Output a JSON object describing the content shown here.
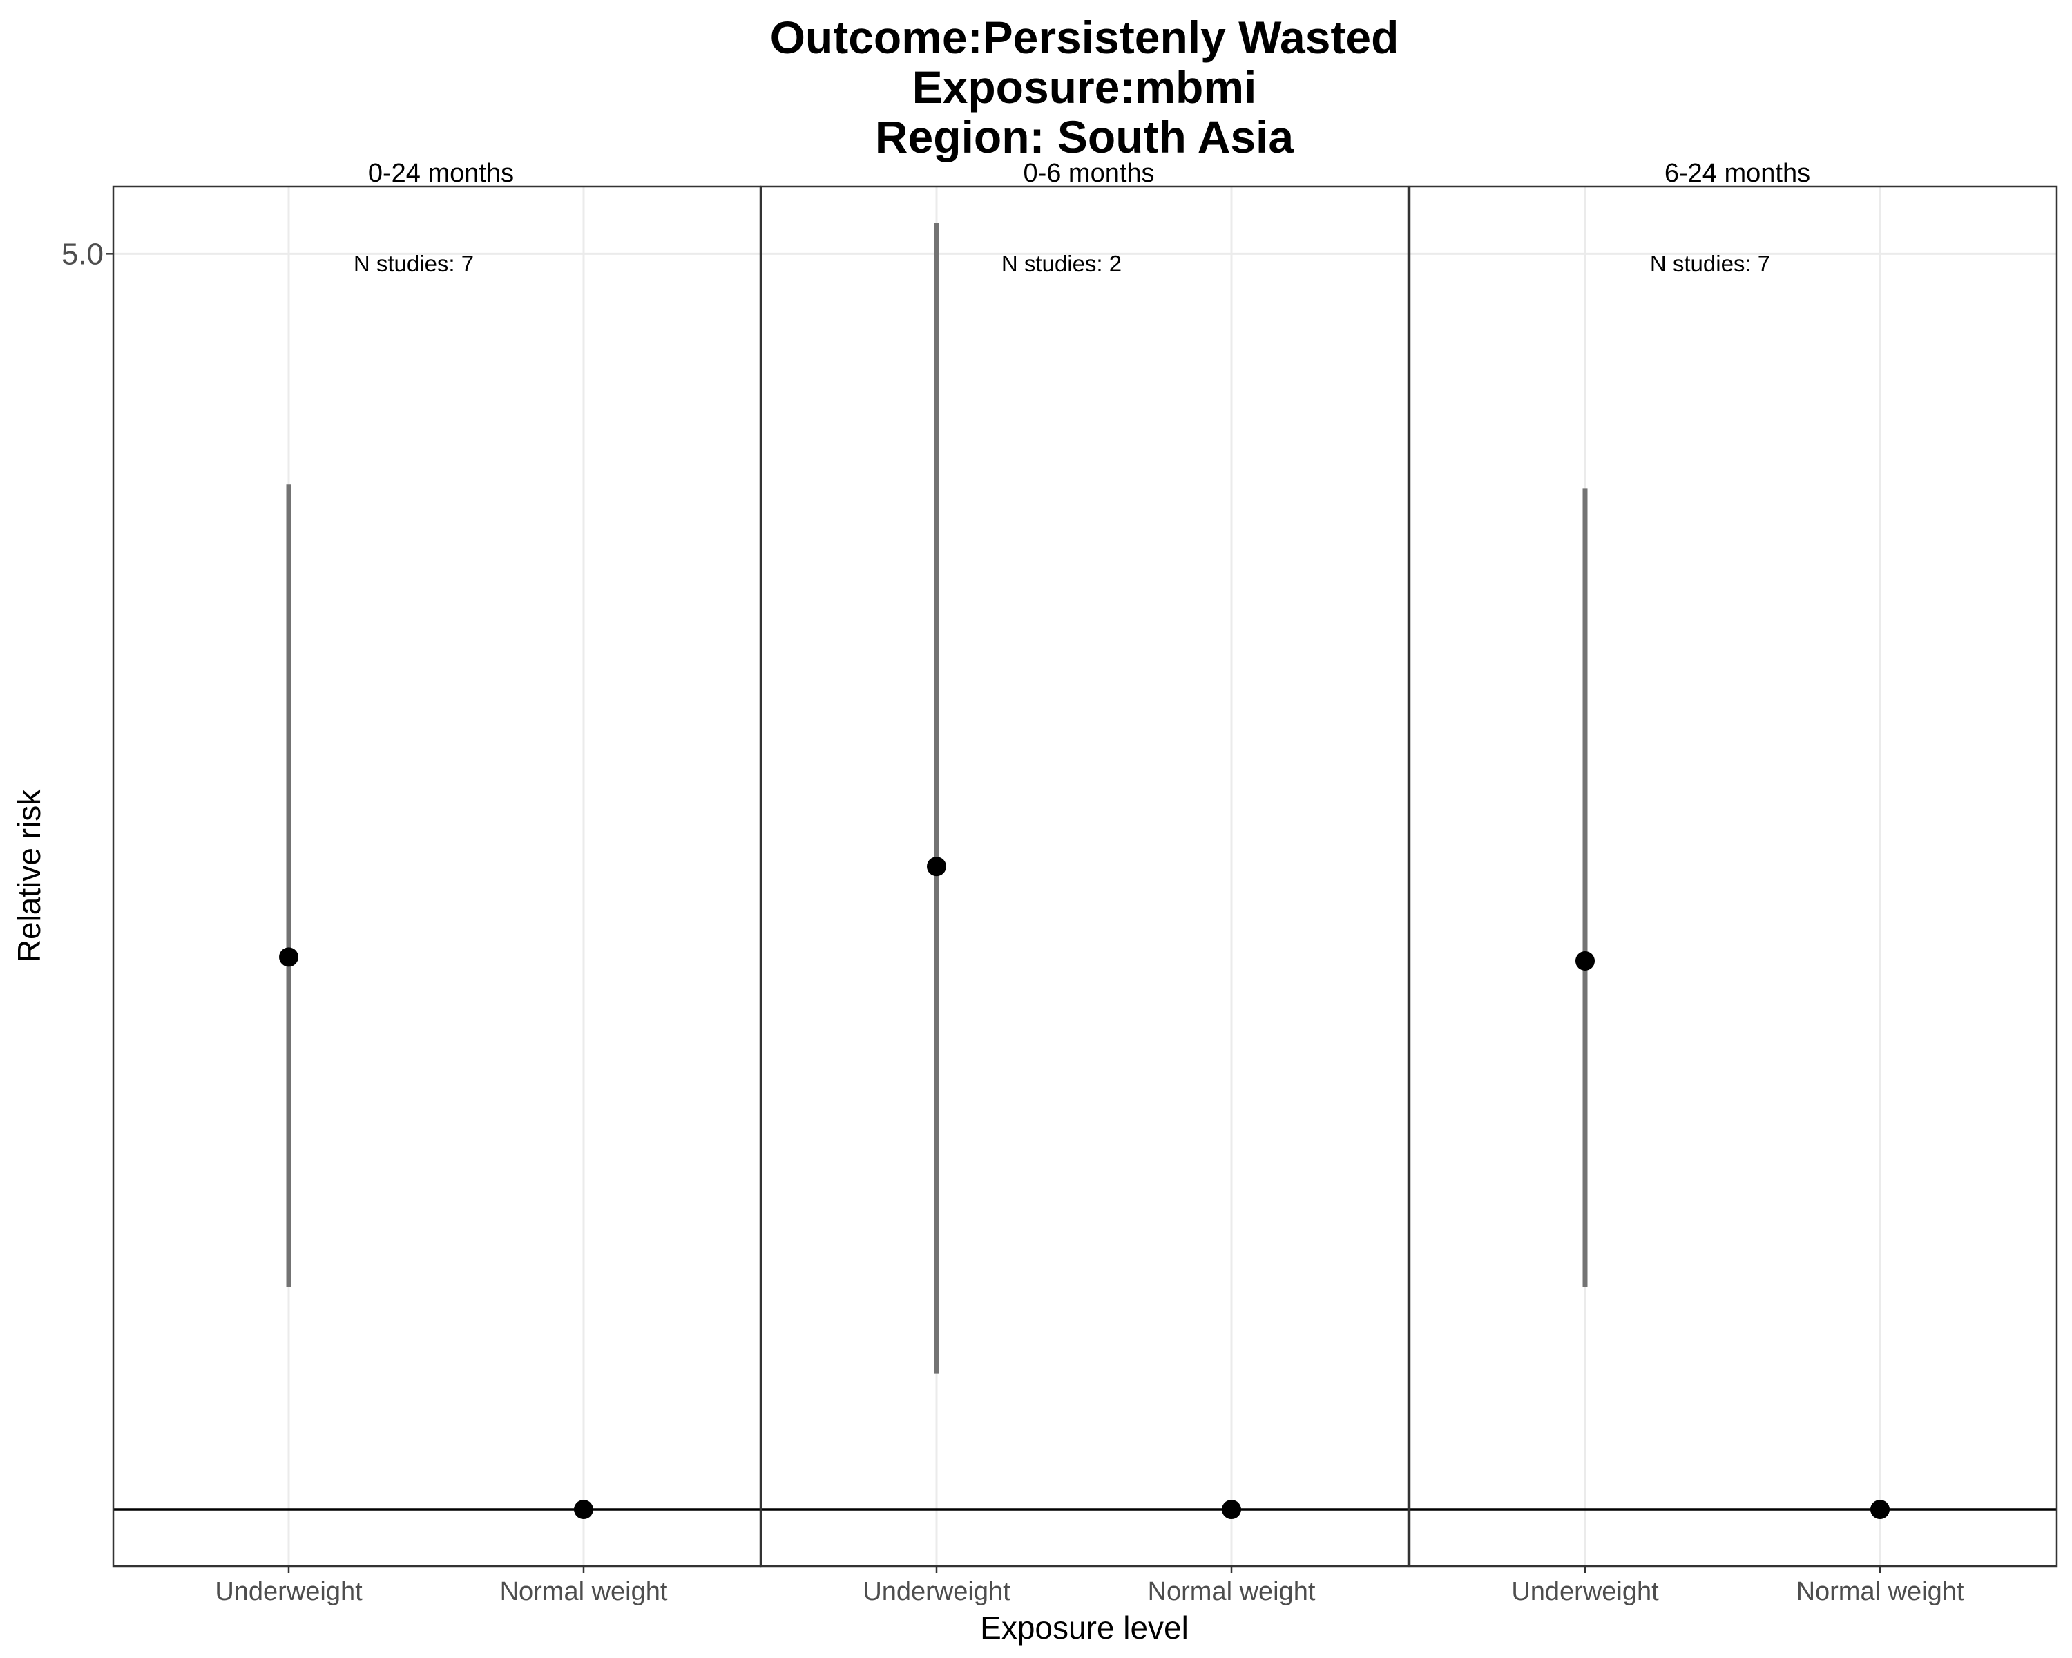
{
  "chart_data": {
    "type": "errorbar",
    "title_lines": [
      "Outcome:Persistenly Wasted",
      "Exposure:mbmi",
      "Region: South Asia"
    ],
    "xlabel": "Exposure level",
    "ylabel": "Relative risk",
    "y_scale": "log",
    "ylim": [
      0.93,
      5.45
    ],
    "y_ticks": [
      {
        "value": 5.0,
        "label": "5.0"
      }
    ],
    "reference_line": 1.0,
    "categories": [
      "Underweight",
      "Normal weight"
    ],
    "panels": [
      {
        "label": "0-24 months",
        "n_studies": "N studies: 7",
        "points": [
          {
            "category": "Underweight",
            "estimate": 2.03,
            "ci_lower": 1.33,
            "ci_upper": 3.72
          },
          {
            "category": "Normal weight",
            "estimate": 1.0
          }
        ]
      },
      {
        "label": "0-6 months",
        "n_studies": "N studies: 2",
        "points": [
          {
            "category": "Underweight",
            "estimate": 2.28,
            "ci_lower": 1.19,
            "ci_upper": 5.2
          },
          {
            "category": "Normal weight",
            "estimate": 1.0
          }
        ]
      },
      {
        "label": "6-24 months",
        "n_studies": "N studies: 7",
        "points": [
          {
            "category": "Underweight",
            "estimate": 2.02,
            "ci_lower": 1.33,
            "ci_upper": 3.7
          },
          {
            "category": "Normal weight",
            "estimate": 1.0
          }
        ]
      }
    ],
    "grid": true,
    "colors": {
      "point": "#000000",
      "errorbar": "#737373",
      "grid": "#ebebeb",
      "border": "#333333",
      "reference": "#000000"
    }
  }
}
